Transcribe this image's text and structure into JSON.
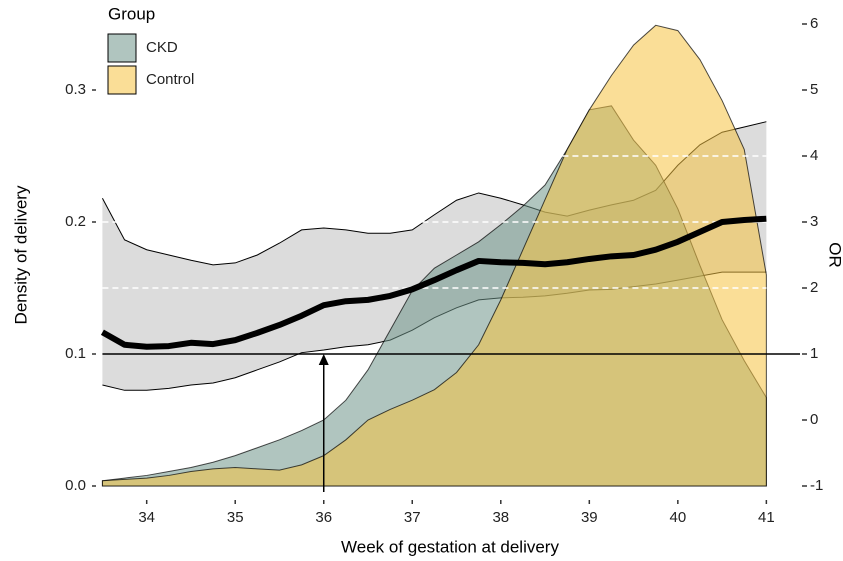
{
  "chart_data": {
    "type": "density_or",
    "x_label": "Week of gestation at delivery",
    "y_label": "Density of delivery",
    "y2_label": "OR",
    "legend_title": "Group",
    "x": [
      33.5,
      33.75,
      34,
      34.25,
      34.5,
      34.75,
      35,
      35.25,
      35.5,
      35.75,
      36,
      36.25,
      36.5,
      36.75,
      37,
      37.25,
      37.5,
      37.75,
      38,
      38.25,
      38.5,
      38.75,
      39,
      39.25,
      39.5,
      39.75,
      40,
      40.25,
      40.5,
      40.75,
      41
    ],
    "series": [
      {
        "name": "CKD",
        "color": "#6f968a",
        "values": [
          0.004,
          0.006,
          0.008,
          0.011,
          0.014,
          0.018,
          0.023,
          0.029,
          0.035,
          0.042,
          0.05,
          0.065,
          0.088,
          0.118,
          0.148,
          0.165,
          0.175,
          0.185,
          0.198,
          0.212,
          0.228,
          0.255,
          0.285,
          0.288,
          0.262,
          0.243,
          0.21,
          0.167,
          0.126,
          0.095,
          0.067
        ]
      },
      {
        "name": "Control",
        "color": "#f5c242",
        "values": [
          0.004,
          0.005,
          0.006,
          0.008,
          0.011,
          0.013,
          0.014,
          0.013,
          0.012,
          0.016,
          0.023,
          0.035,
          0.05,
          0.058,
          0.065,
          0.073,
          0.086,
          0.107,
          0.141,
          0.179,
          0.217,
          0.255,
          0.285,
          0.311,
          0.334,
          0.349,
          0.345,
          0.323,
          0.292,
          0.255,
          0.16
        ]
      },
      {
        "name": "OR",
        "axis": "y2",
        "color": "#000000",
        "values": [
          1.33,
          1.14,
          1.11,
          1.12,
          1.17,
          1.15,
          1.21,
          1.32,
          1.44,
          1.58,
          1.74,
          1.8,
          1.82,
          1.88,
          1.98,
          2.12,
          2.27,
          2.41,
          2.39,
          2.38,
          2.36,
          2.39,
          2.44,
          2.48,
          2.5,
          2.58,
          2.7,
          2.85,
          3.0,
          3.03,
          3.05
        ],
        "lower": [
          0.53,
          0.45,
          0.45,
          0.48,
          0.53,
          0.56,
          0.64,
          0.76,
          0.88,
          1.02,
          1.06,
          1.11,
          1.14,
          1.21,
          1.36,
          1.55,
          1.7,
          1.82,
          1.85,
          1.86,
          1.88,
          1.92,
          1.97,
          1.98,
          2.02,
          2.06,
          2.12,
          2.18,
          2.24,
          2.24,
          2.24
        ],
        "upper": [
          3.36,
          2.73,
          2.58,
          2.5,
          2.42,
          2.35,
          2.38,
          2.5,
          2.68,
          2.88,
          2.91,
          2.88,
          2.83,
          2.83,
          2.88,
          3.11,
          3.33,
          3.44,
          3.36,
          3.26,
          3.15,
          3.09,
          3.18,
          3.26,
          3.33,
          3.48,
          3.86,
          4.17,
          4.36,
          4.44,
          4.52
        ]
      }
    ],
    "hline": 1,
    "dashed_lines": [
      2,
      3,
      4
    ],
    "arrow_x": 36,
    "xlim": [
      33.45,
      41.38
    ],
    "xticks": [
      34,
      35,
      36,
      37,
      38,
      39,
      40,
      41
    ],
    "ylim": [
      0,
      0.35
    ],
    "yticks": [
      {
        "value": 0,
        "label": "0.0"
      },
      0.1,
      0.2,
      0.3
    ],
    "y2lim": [
      -1,
      6
    ],
    "y2ticks": [
      -1,
      0,
      1,
      2,
      3,
      4,
      5,
      6
    ]
  }
}
